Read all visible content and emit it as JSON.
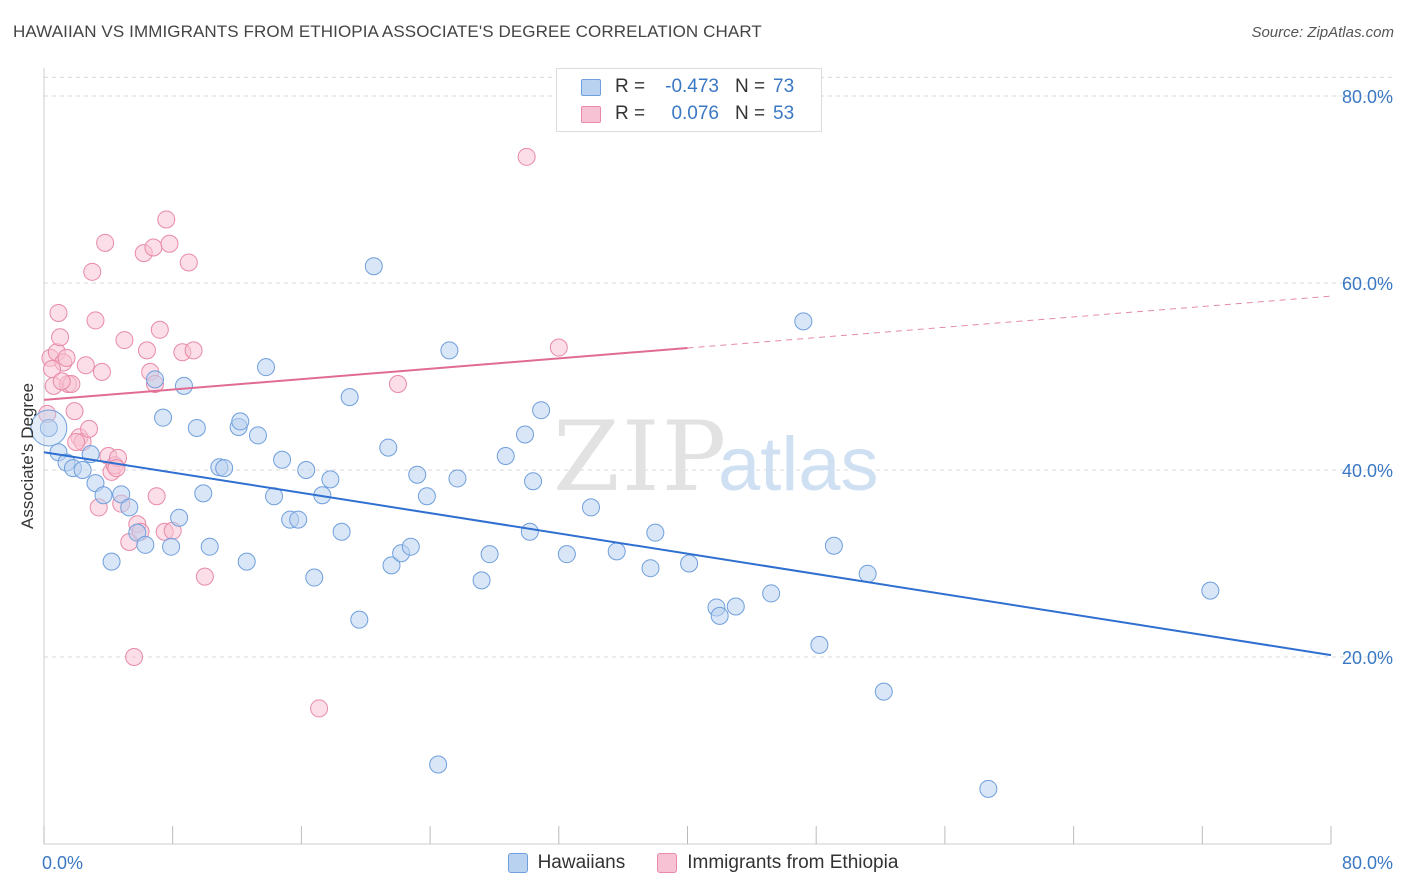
{
  "title": "HAWAIIAN VS IMMIGRANTS FROM ETHIOPIA ASSOCIATE'S DEGREE CORRELATION CHART",
  "source": "Source: ZipAtlas.com",
  "watermark": {
    "zip": "ZIP",
    "atlas": "atlas"
  },
  "legend_top": [
    {
      "r_label": "R =",
      "r_value": "-0.473",
      "n_label": "N =",
      "n_value": "73"
    },
    {
      "r_label": "R =",
      "r_value": "0.076",
      "n_label": "N =",
      "n_value": "53"
    }
  ],
  "legend_bottom": [
    "Hawaiians",
    "Immigrants from Ethiopia"
  ],
  "colors": {
    "blue_fill": "#b9d2f0",
    "blue_stroke": "#6f9fdc",
    "blue_line": "#2f6fd0",
    "pink_fill": "#f7c3d4",
    "pink_stroke": "#e88aa8",
    "pink_line": "#e06c94",
    "tick_text": "#3b78c4",
    "grid": "#d9d9d9"
  },
  "chart_data": {
    "type": "scatter",
    "title": "HAWAIIAN VS IMMIGRANTS FROM ETHIOPIA ASSOCIATE'S DEGREE CORRELATION CHART",
    "xlabel": "",
    "ylabel": "Associate's Degree",
    "xlim": [
      0,
      80
    ],
    "ylim": [
      0,
      83
    ],
    "x_tick_labels": [
      "0.0%",
      "80.0%"
    ],
    "y_ticks": [
      20,
      40,
      60,
      80
    ],
    "y_tick_labels": [
      "20.0%",
      "40.0%",
      "60.0%",
      "80.0%"
    ],
    "grid": true,
    "series": [
      {
        "name": "Hawaiians",
        "color": "#6f9fdc",
        "trend": {
          "x": [
            0,
            80
          ],
          "y": [
            41.9,
            20.2
          ],
          "dashed_from": null
        },
        "points": [
          [
            0.3,
            44.5
          ],
          [
            0.9,
            41.9
          ],
          [
            1.4,
            40.8
          ],
          [
            1.8,
            40.2
          ],
          [
            2.4,
            40.0
          ],
          [
            2.9,
            41.7
          ],
          [
            3.2,
            38.6
          ],
          [
            3.7,
            37.3
          ],
          [
            4.2,
            30.2
          ],
          [
            4.8,
            37.4
          ],
          [
            5.3,
            36.0
          ],
          [
            5.8,
            33.3
          ],
          [
            6.3,
            32.0
          ],
          [
            6.9,
            49.7
          ],
          [
            7.4,
            45.6
          ],
          [
            7.9,
            31.8
          ],
          [
            8.4,
            34.9
          ],
          [
            8.7,
            49.0
          ],
          [
            9.5,
            44.5
          ],
          [
            9.9,
            37.5
          ],
          [
            10.3,
            31.8
          ],
          [
            10.9,
            40.3
          ],
          [
            11.2,
            40.2
          ],
          [
            12.1,
            44.6
          ],
          [
            12.2,
            45.2
          ],
          [
            12.6,
            30.2
          ],
          [
            13.3,
            43.7
          ],
          [
            13.8,
            51.0
          ],
          [
            14.3,
            37.2
          ],
          [
            14.8,
            41.1
          ],
          [
            15.3,
            34.7
          ],
          [
            15.8,
            34.7
          ],
          [
            16.3,
            40.0
          ],
          [
            16.8,
            28.5
          ],
          [
            17.3,
            37.3
          ],
          [
            17.8,
            39.0
          ],
          [
            18.5,
            33.4
          ],
          [
            19.0,
            47.8
          ],
          [
            19.6,
            24.0
          ],
          [
            20.5,
            61.8
          ],
          [
            21.4,
            42.4
          ],
          [
            21.6,
            29.8
          ],
          [
            22.2,
            31.1
          ],
          [
            22.8,
            31.8
          ],
          [
            23.2,
            39.5
          ],
          [
            23.8,
            37.2
          ],
          [
            24.5,
            8.5
          ],
          [
            25.2,
            52.8
          ],
          [
            25.7,
            39.1
          ],
          [
            27.2,
            28.2
          ],
          [
            27.7,
            31.0
          ],
          [
            28.7,
            41.5
          ],
          [
            29.9,
            43.8
          ],
          [
            30.2,
            33.4
          ],
          [
            30.4,
            38.8
          ],
          [
            30.9,
            46.4
          ],
          [
            32.5,
            31.0
          ],
          [
            34.0,
            36.0
          ],
          [
            35.6,
            31.3
          ],
          [
            37.7,
            29.5
          ],
          [
            38.0,
            33.3
          ],
          [
            40.1,
            30.0
          ],
          [
            41.8,
            25.3
          ],
          [
            42.0,
            24.4
          ],
          [
            43.0,
            25.4
          ],
          [
            45.2,
            26.8
          ],
          [
            47.2,
            55.9
          ],
          [
            48.2,
            21.3
          ],
          [
            49.1,
            31.9
          ],
          [
            51.2,
            28.9
          ],
          [
            52.2,
            16.3
          ],
          [
            58.7,
            5.9
          ],
          [
            72.5,
            27.1
          ]
        ]
      },
      {
        "name": "Immigrants from Ethiopia",
        "color": "#e88aa8",
        "trend": {
          "x": [
            0,
            80
          ],
          "y": [
            47.5,
            58.6
          ],
          "dashed_from": 40
        },
        "points": [
          [
            0.2,
            46.0
          ],
          [
            0.4,
            52.0
          ],
          [
            0.6,
            49.0
          ],
          [
            0.8,
            52.6
          ],
          [
            0.9,
            56.8
          ],
          [
            1.0,
            54.2
          ],
          [
            1.2,
            51.5
          ],
          [
            1.4,
            52.0
          ],
          [
            1.5,
            49.2
          ],
          [
            1.7,
            49.2
          ],
          [
            1.9,
            46.3
          ],
          [
            2.2,
            43.5
          ],
          [
            2.4,
            43.0
          ],
          [
            2.6,
            51.2
          ],
          [
            2.8,
            44.4
          ],
          [
            3.0,
            61.2
          ],
          [
            3.2,
            56.0
          ],
          [
            3.4,
            36.0
          ],
          [
            3.6,
            50.5
          ],
          [
            3.8,
            64.3
          ],
          [
            4.0,
            41.5
          ],
          [
            4.2,
            39.8
          ],
          [
            4.4,
            40.5
          ],
          [
            4.6,
            41.3
          ],
          [
            4.8,
            36.4
          ],
          [
            5.0,
            53.9
          ],
          [
            5.3,
            32.3
          ],
          [
            5.6,
            20.0
          ],
          [
            5.8,
            34.2
          ],
          [
            6.0,
            33.4
          ],
          [
            6.2,
            63.2
          ],
          [
            6.4,
            52.8
          ],
          [
            6.6,
            50.5
          ],
          [
            6.8,
            63.8
          ],
          [
            7.0,
            37.2
          ],
          [
            7.2,
            55.0
          ],
          [
            7.5,
            33.4
          ],
          [
            7.6,
            66.8
          ],
          [
            7.8,
            64.2
          ],
          [
            8.0,
            33.5
          ],
          [
            8.6,
            52.6
          ],
          [
            9.0,
            62.2
          ],
          [
            9.3,
            52.8
          ],
          [
            10.0,
            28.6
          ],
          [
            17.1,
            14.5
          ],
          [
            22.0,
            49.2
          ],
          [
            30.0,
            73.5
          ],
          [
            32.0,
            53.1
          ],
          [
            0.5,
            50.8
          ],
          [
            1.1,
            49.5
          ],
          [
            2.0,
            43.0
          ],
          [
            4.5,
            40.2
          ],
          [
            6.9,
            49.2
          ]
        ]
      }
    ]
  }
}
